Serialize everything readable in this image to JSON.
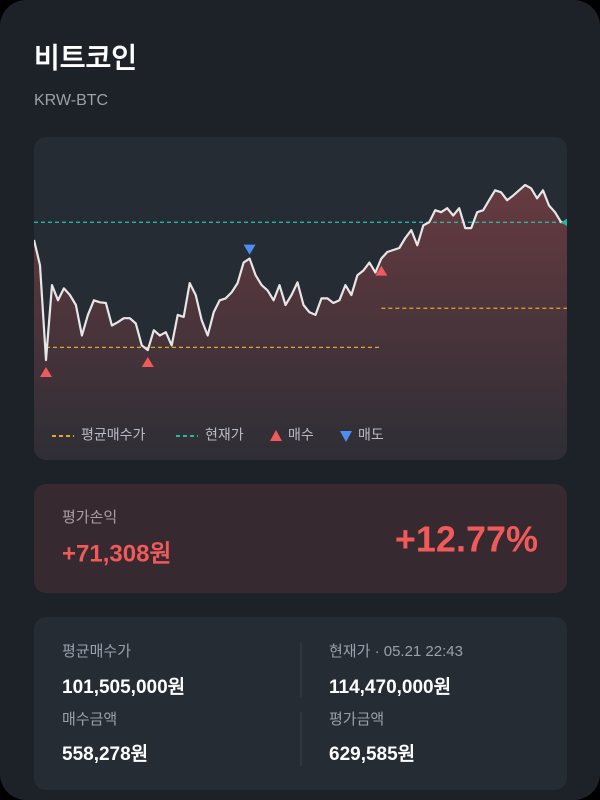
{
  "header": {
    "title": "비트코인",
    "subtitle": "KRW-BTC"
  },
  "chart_data": {
    "type": "line",
    "color": "#e6e6e6",
    "fill": "#f05a5a",
    "values": [
      111.8,
      108.0,
      93.7,
      105.0,
      102.7,
      104.5,
      103.5,
      102.0,
      97.4,
      100.5,
      102.7,
      102.4,
      102.3,
      98.9,
      99.4,
      100.0,
      100.0,
      99.2,
      95.9,
      95.2,
      98.2,
      97.4,
      97.9,
      95.9,
      100.5,
      100.2,
      105.3,
      103.5,
      99.7,
      97.4,
      100.9,
      102.7,
      103.0,
      103.9,
      105.3,
      108.4,
      109.0,
      106.5,
      105.0,
      104.2,
      102.7,
      105.0,
      102.0,
      103.5,
      105.4,
      102.0,
      100.9,
      100.5,
      103.0,
      103.0,
      102.3,
      102.7,
      105.0,
      103.5,
      106.5,
      107.2,
      108.4,
      106.9,
      109.0,
      110.0,
      110.3,
      110.6,
      112.1,
      113.3,
      111.0,
      114.0,
      114.5,
      116.3,
      116.0,
      116.6,
      115.5,
      116.6,
      113.6,
      113.6,
      116.0,
      116.3,
      117.8,
      119.3,
      119.0,
      117.8,
      118.5,
      119.3,
      120.1,
      119.6,
      118.1,
      119.3,
      117.0,
      116.0,
      114.5,
      114.47
    ],
    "avg_price": {
      "name": "평균매수가",
      "color": "#e0a82e",
      "segments": [
        {
          "from": 2,
          "to": 58,
          "value": 95.6
        },
        {
          "from": 58,
          "to": 89,
          "value": 101.505
        }
      ]
    },
    "current_price": {
      "name": "현재가",
      "color": "#2bb3a3",
      "value": 114.47
    },
    "buy": {
      "name": "매수",
      "color": "#f05a5a",
      "points": [
        2,
        19,
        58
      ]
    },
    "sell": {
      "name": "매도",
      "color": "#4d8ef0",
      "points": [
        36
      ]
    }
  },
  "pnl": {
    "label": "평가손익",
    "amount": "+71,308원",
    "rate": "+12.77%"
  },
  "stats": {
    "items": [
      {
        "label": "평균매수가",
        "value": "101,505,000원"
      },
      {
        "label": "현재가 · 05.21 22:43",
        "value": "114,470,000원"
      },
      {
        "label": "매수금액",
        "value": "558,278원"
      },
      {
        "label": "평가금액",
        "value": "629,585원"
      }
    ]
  }
}
